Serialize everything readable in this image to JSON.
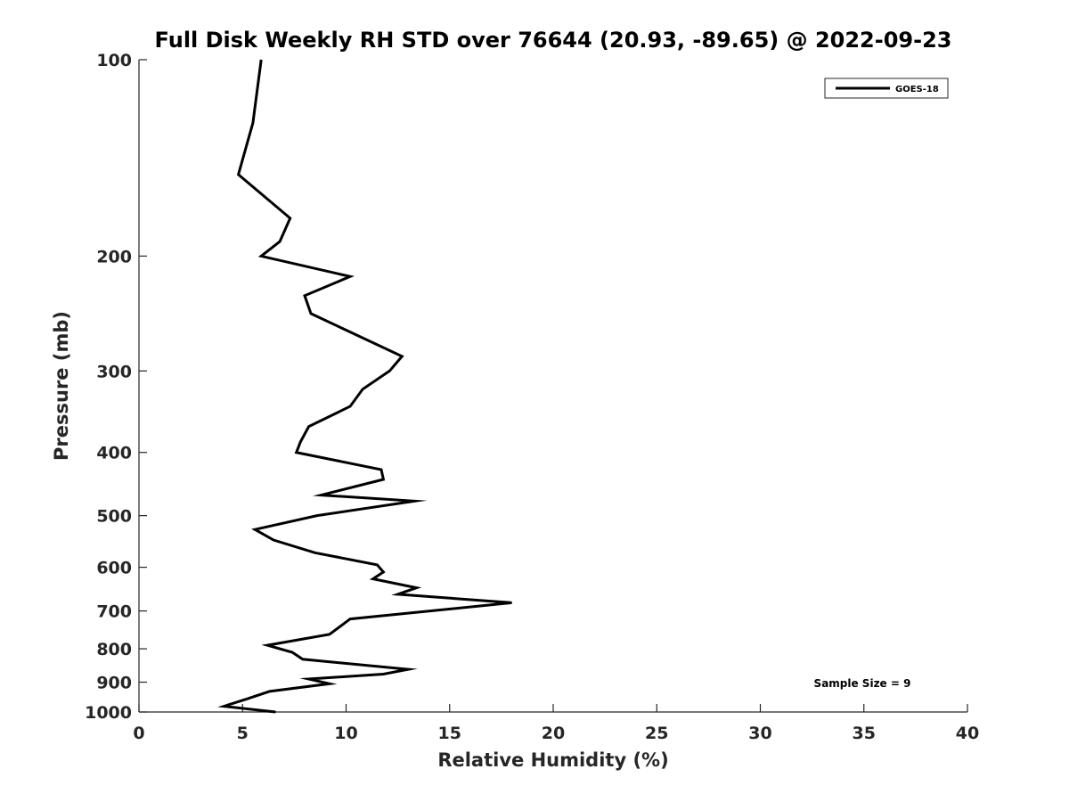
{
  "chart_data": {
    "type": "line",
    "title": "Full Disk Weekly RH STD over 76644 (20.93, -89.65) @ 2022-09-23",
    "xlabel": "Relative Humidity (%)",
    "ylabel": "Pressure (mb)",
    "xlim": [
      0,
      40
    ],
    "ylim": [
      100,
      1000
    ],
    "y_scale": "log",
    "y_reversed": true,
    "grid": false,
    "x_ticks": [
      0,
      5,
      10,
      15,
      20,
      25,
      30,
      35,
      40
    ],
    "y_ticks": [
      100,
      200,
      300,
      400,
      500,
      600,
      700,
      800,
      900,
      1000
    ],
    "legend_position": "top-right",
    "annotation": "Sample Size = 9",
    "series": [
      {
        "name": "GOES-18",
        "color": "#000000",
        "points": [
          [
            5.9,
            100
          ],
          [
            5.5,
            125
          ],
          [
            4.8,
            150
          ],
          [
            7.3,
            175
          ],
          [
            6.8,
            190
          ],
          [
            5.9,
            200
          ],
          [
            10.2,
            215
          ],
          [
            8.0,
            230
          ],
          [
            8.3,
            245
          ],
          [
            12.7,
            285
          ],
          [
            12.1,
            300
          ],
          [
            10.8,
            320
          ],
          [
            10.2,
            340
          ],
          [
            8.2,
            365
          ],
          [
            7.8,
            385
          ],
          [
            7.6,
            400
          ],
          [
            11.7,
            425
          ],
          [
            11.8,
            440
          ],
          [
            8.8,
            465
          ],
          [
            13.3,
            475
          ],
          [
            8.6,
            500
          ],
          [
            5.6,
            525
          ],
          [
            6.5,
            545
          ],
          [
            8.5,
            570
          ],
          [
            11.5,
            595
          ],
          [
            11.8,
            610
          ],
          [
            11.3,
            625
          ],
          [
            13.4,
            645
          ],
          [
            12.5,
            660
          ],
          [
            18.0,
            680
          ],
          [
            10.2,
            720
          ],
          [
            9.2,
            760
          ],
          [
            6.2,
            790
          ],
          [
            7.4,
            810
          ],
          [
            7.9,
            830
          ],
          [
            13.0,
            860
          ],
          [
            11.8,
            875
          ],
          [
            8.2,
            890
          ],
          [
            9.2,
            905
          ],
          [
            6.3,
            930
          ],
          [
            5.2,
            955
          ],
          [
            4.1,
            980
          ],
          [
            6.6,
            1000
          ]
        ]
      }
    ]
  }
}
